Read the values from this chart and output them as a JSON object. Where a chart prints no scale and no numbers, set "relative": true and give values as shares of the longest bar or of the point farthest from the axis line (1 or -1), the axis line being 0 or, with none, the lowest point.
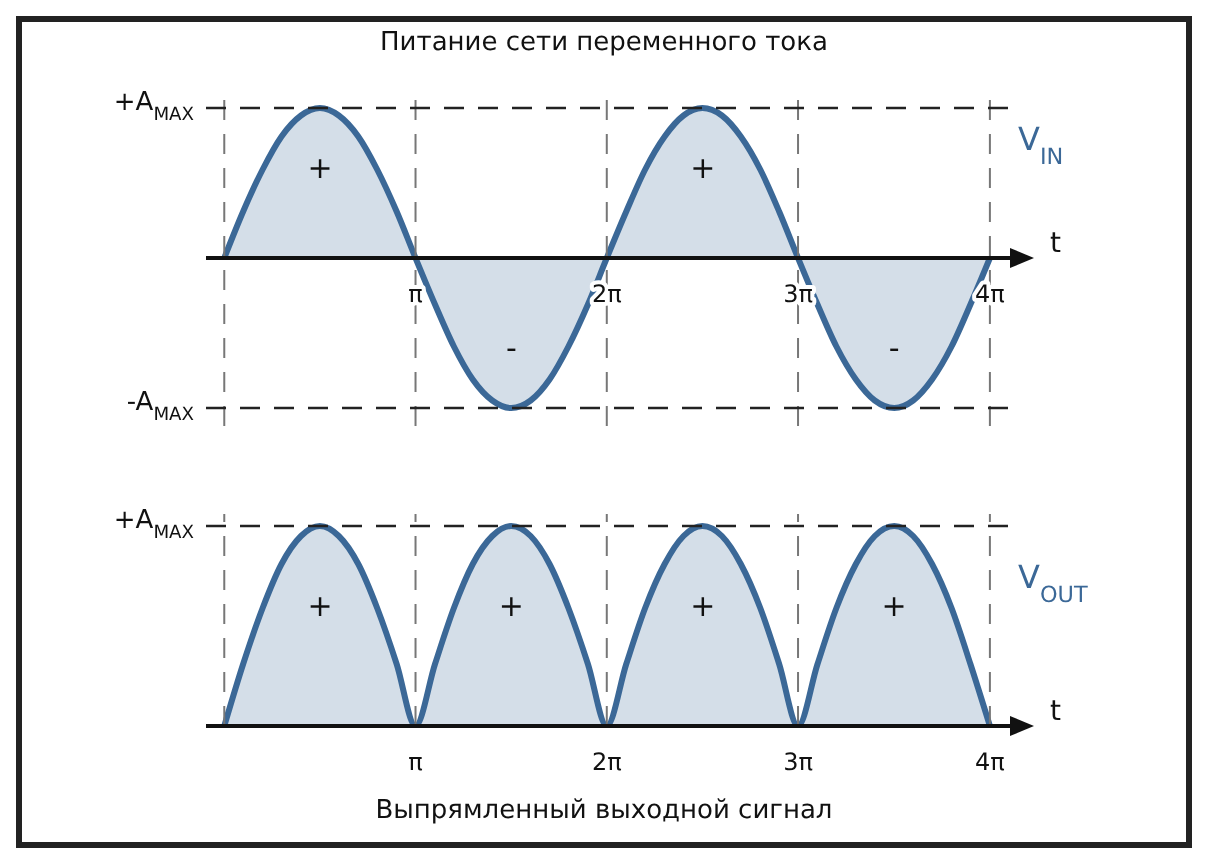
{
  "chart_data": [
    {
      "type": "area",
      "title": "Питание сети переменного тока",
      "xlabel": "t",
      "relative": true,
      "x": [
        0,
        0.31,
        0.63,
        0.94,
        1.26,
        1.57,
        1.88,
        2.2,
        2.51,
        2.83,
        3.14,
        3.46,
        3.77,
        4.08,
        4.4,
        4.71,
        5.03,
        5.34,
        5.65,
        5.97,
        6.28,
        6.6,
        6.91,
        7.23,
        7.54,
        7.85,
        8.17,
        8.48,
        8.8,
        9.11,
        9.42,
        9.74,
        10.05,
        10.37,
        10.68,
        11,
        11.31,
        11.62,
        11.94,
        12.25,
        12.57
      ],
      "series": [
        {
          "name": "V$_{IN}$",
          "color": "#3b6897",
          "values": [
            0,
            0.31,
            0.59,
            0.81,
            0.95,
            1,
            0.95,
            0.81,
            0.59,
            0.31,
            0,
            -0.31,
            -0.59,
            -0.81,
            -0.95,
            -1,
            -0.95,
            -0.81,
            -0.59,
            -0.31,
            0,
            0.31,
            0.59,
            0.81,
            0.95,
            1,
            0.95,
            0.81,
            0.59,
            0.31,
            0,
            -0.31,
            -0.59,
            -0.81,
            -0.95,
            -1,
            -0.95,
            -0.81,
            -0.59,
            -0.31,
            0
          ]
        }
      ],
      "xlim": [
        -0.3,
        12.9
      ],
      "xticks": [
        {
          "value": 0,
          "label": null
        },
        {
          "value": 3.14,
          "label": "π"
        },
        {
          "value": 6.28,
          "label": "2π"
        },
        {
          "value": 9.42,
          "label": "3π"
        },
        {
          "value": 12.57,
          "label": "4π"
        }
      ],
      "ref_lines": [
        {
          "axis": "y",
          "value": 1,
          "label": "+A$_{MAX}$",
          "line_style": "dashed"
        },
        {
          "axis": "y",
          "value": -1,
          "label": "-A$_{MAX}$",
          "line_style": "dashed"
        }
      ],
      "grid": "x",
      "annotations": [
        "+",
        "-",
        "+",
        "-"
      ]
    },
    {
      "type": "area",
      "title": "Выпрямленный выходной сигнал",
      "xlabel": "t",
      "relative": true,
      "x": [
        0,
        0.31,
        0.63,
        0.94,
        1.26,
        1.57,
        1.88,
        2.2,
        2.51,
        2.83,
        3.14,
        3.46,
        3.77,
        4.08,
        4.4,
        4.71,
        5.03,
        5.34,
        5.65,
        5.97,
        6.28,
        6.6,
        6.91,
        7.23,
        7.54,
        7.85,
        8.17,
        8.48,
        8.8,
        9.11,
        9.42,
        9.74,
        10.05,
        10.37,
        10.68,
        11,
        11.31,
        11.62,
        11.94,
        12.25,
        12.57
      ],
      "series": [
        {
          "name": "V$_{OUT}$",
          "color": "#3b6897",
          "values": [
            0,
            0.31,
            0.59,
            0.81,
            0.95,
            1,
            0.95,
            0.81,
            0.59,
            0.31,
            0,
            0.31,
            0.59,
            0.81,
            0.95,
            1,
            0.95,
            0.81,
            0.59,
            0.31,
            0,
            0.31,
            0.59,
            0.81,
            0.95,
            1,
            0.95,
            0.81,
            0.59,
            0.31,
            0,
            0.31,
            0.59,
            0.81,
            0.95,
            1,
            0.95,
            0.81,
            0.59,
            0.31,
            0
          ]
        }
      ],
      "xlim": [
        -0.3,
        12.9
      ],
      "xticks": [
        {
          "value": 0,
          "label": null
        },
        {
          "value": 3.14,
          "label": "π"
        },
        {
          "value": 6.28,
          "label": "2π"
        },
        {
          "value": 9.42,
          "label": "3π"
        },
        {
          "value": 12.57,
          "label": "4π"
        }
      ],
      "ref_lines": [
        {
          "axis": "y",
          "value": 1,
          "label": "+A$_{MAX}$",
          "line_style": "dashed"
        }
      ],
      "grid": "x",
      "annotations": [
        "+",
        "+",
        "+",
        "+"
      ]
    }
  ]
}
